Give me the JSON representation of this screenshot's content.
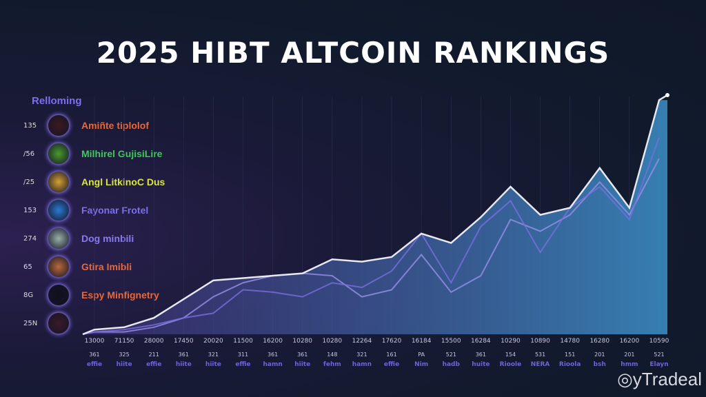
{
  "chart_data": {
    "type": "line",
    "title": "2025  HIBT ALTCOIN RANKINGS",
    "legend_title": "Relloming",
    "legend": [
      {
        "num": "135",
        "name": "Amiñte tiplolof",
        "color": "#e8683a",
        "coin": "#3a1a20"
      },
      {
        "num": "/56",
        "name": "Milhirel GujisiLire",
        "color": "#3fc95a",
        "coin": "#4a9a2a"
      },
      {
        "num": "/25",
        "name": "Angl LitkinoC Dus",
        "color": "#d8e83a",
        "coin": "#d4a030"
      },
      {
        "num": "153",
        "name": "Fayonar Frotel",
        "color": "#7b6ff0",
        "coin": "#2a7ad0"
      },
      {
        "num": "274",
        "name": "Dog minbili",
        "color": "#8a7af0",
        "coin": "#9ab0a8"
      },
      {
        "num": "65",
        "name": "Gtira Imibli",
        "color": "#e8683a",
        "coin": "#b86a3a"
      },
      {
        "num": "8G",
        "name": "Espy Minfignetry",
        "color": "#e8683a",
        "coin": "#101020"
      },
      {
        "num": "25N",
        "name": "",
        "color": "#e8683a",
        "coin": "#3a1a28"
      }
    ],
    "x_ticks": [
      "13000",
      "71150",
      "28000",
      "17450",
      "20020",
      "11500",
      "16200",
      "10280",
      "10280",
      "12264",
      "17620",
      "16184",
      "15500",
      "16284",
      "10290",
      "10890",
      "14780",
      "16280",
      "16200",
      "10590"
    ],
    "x_sub": [
      "361",
      "325",
      "211",
      "361",
      "321",
      "311",
      "361",
      "361",
      "148",
      "321",
      "161",
      "PA",
      "521",
      "361",
      "154",
      "531",
      "151",
      "201",
      "201",
      "521"
    ],
    "x_names": [
      "effie",
      "hiite",
      "effie",
      "hiite",
      "hiite",
      "effie",
      "hamn",
      "hiite",
      "fehm",
      "hamn",
      "effie",
      "Nim",
      "hadb",
      "huite",
      "Rioole",
      "NERA",
      "Rioola",
      "bsh",
      "hmm",
      "Elayn"
    ],
    "ylim": [
      0,
      103
    ],
    "series": [
      {
        "name": "white",
        "color": "#e8e8f0",
        "values": [
          2,
          3,
          7,
          15,
          23,
          24,
          25,
          26,
          32,
          31,
          33,
          43,
          39,
          50,
          63,
          51,
          54,
          71,
          54,
          100
        ]
      },
      {
        "name": "purple",
        "color": "#7a6ee0",
        "values": [
          1,
          2,
          4,
          7,
          9,
          19,
          18,
          16,
          22,
          20,
          27,
          43,
          22,
          46,
          57,
          35,
          54,
          63,
          49,
          84
        ]
      },
      {
        "name": "lavender",
        "color": "#9a90e8",
        "values": [
          1,
          1,
          3,
          7,
          16,
          22,
          25,
          26,
          25,
          16,
          19,
          34,
          18,
          25,
          49,
          44,
          51,
          65,
          51,
          75
        ]
      }
    ]
  },
  "watermark": "yTradeal"
}
